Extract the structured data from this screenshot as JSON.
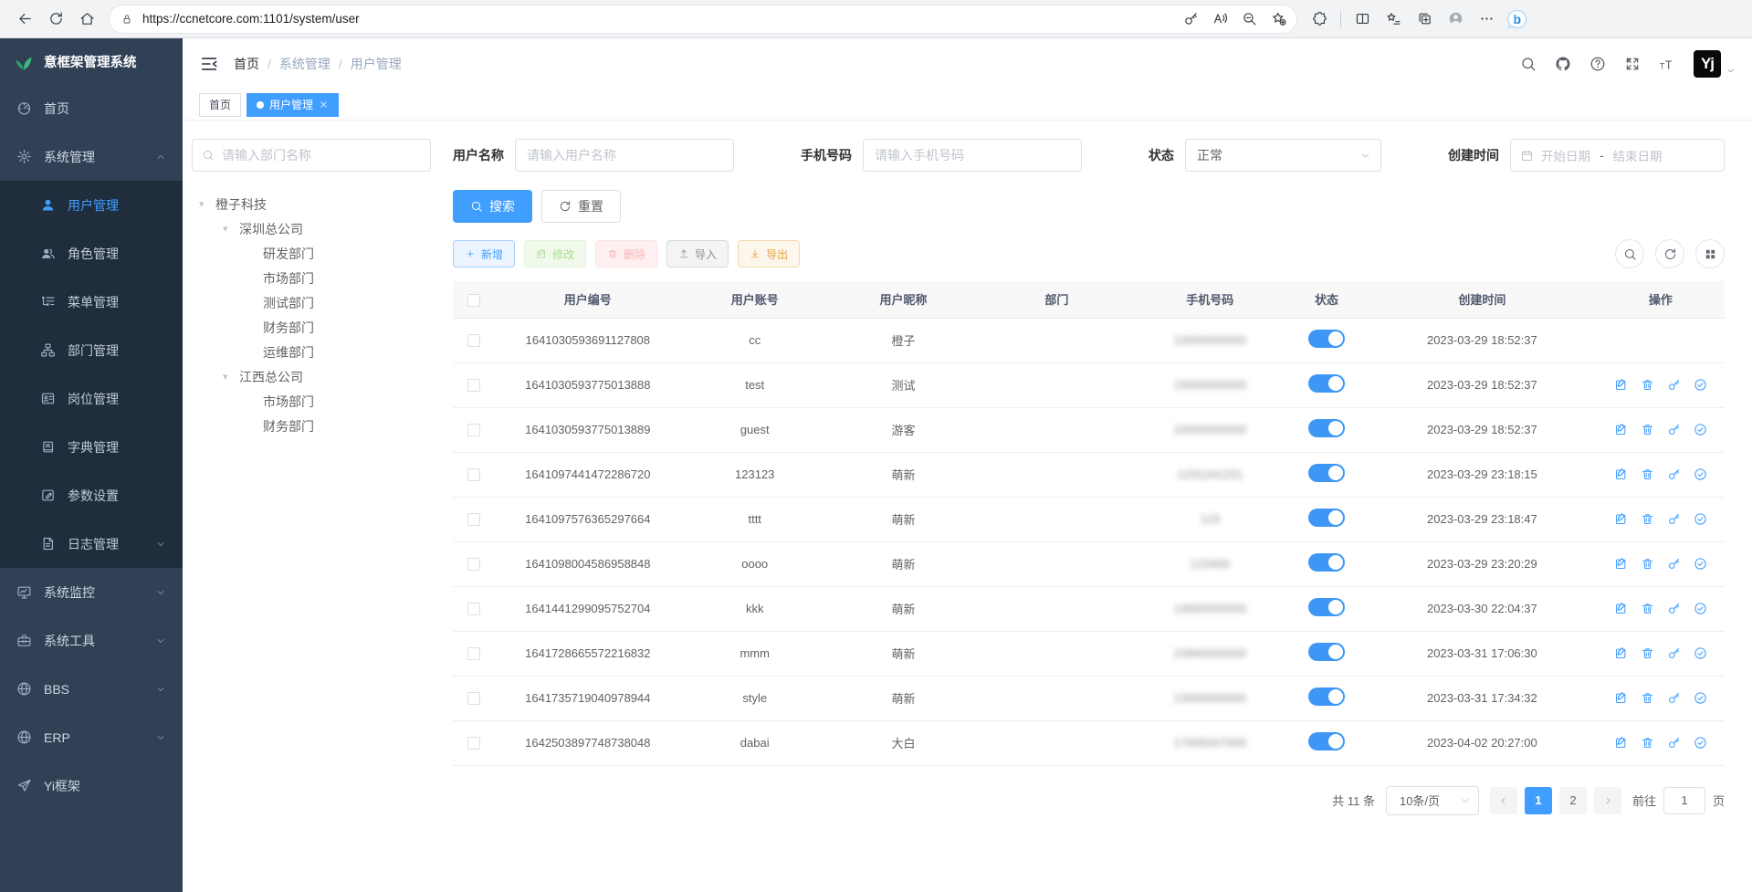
{
  "browser": {
    "url": "https://ccnetcore.com:1101/system/user",
    "left_icons": [
      "back",
      "refresh",
      "home"
    ],
    "url_icons": [
      "key",
      "read-aloud",
      "zoom-out",
      "star-plus"
    ],
    "right_icons": [
      "extensions",
      "split",
      "fav-bar",
      "collections",
      "profile",
      "more"
    ]
  },
  "sidebar": {
    "title": "意框架管理系统",
    "items": [
      {
        "label": "首页",
        "icon": "dashboard"
      },
      {
        "label": "系统管理",
        "icon": "gear",
        "caret": "up"
      },
      {
        "label": "用户管理",
        "icon": "user",
        "sub": true,
        "active": true
      },
      {
        "label": "角色管理",
        "icon": "users",
        "sub": true
      },
      {
        "label": "菜单管理",
        "icon": "menu-tree",
        "sub": true
      },
      {
        "label": "部门管理",
        "icon": "org",
        "sub": true
      },
      {
        "label": "岗位管理",
        "icon": "badge",
        "sub": true
      },
      {
        "label": "字典管理",
        "icon": "dict",
        "sub": true
      },
      {
        "label": "参数设置",
        "icon": "edit-square",
        "sub": true
      },
      {
        "label": "日志管理",
        "icon": "log",
        "sub": true,
        "caret": "down"
      },
      {
        "label": "系统监控",
        "icon": "monitor",
        "caret": "down"
      },
      {
        "label": "系统工具",
        "icon": "toolbox",
        "caret": "down"
      },
      {
        "label": "BBS",
        "icon": "globe",
        "caret": "down"
      },
      {
        "label": "ERP",
        "icon": "globe",
        "caret": "down"
      },
      {
        "label": "Yi框架",
        "icon": "plane"
      }
    ]
  },
  "navbar": {
    "breadcrumb": [
      "首页",
      "系统管理",
      "用户管理"
    ],
    "sep": "/",
    "tools": [
      "search",
      "github",
      "question",
      "fullscreen",
      "font-size"
    ],
    "avatar": "Yj"
  },
  "tabs": [
    {
      "label": "首页",
      "active": false
    },
    {
      "label": "用户管理",
      "active": true
    }
  ],
  "tree": {
    "placeholder": "请输入部门名称",
    "nodes": [
      {
        "label": "橙子科技",
        "level": 0,
        "exp": true
      },
      {
        "label": "深圳总公司",
        "level": 1,
        "exp": true
      },
      {
        "label": "研发部门",
        "level": 2
      },
      {
        "label": "市场部门",
        "level": 2
      },
      {
        "label": "测试部门",
        "level": 2
      },
      {
        "label": "财务部门",
        "level": 2
      },
      {
        "label": "运维部门",
        "level": 2
      },
      {
        "label": "江西总公司",
        "level": 1,
        "exp": true
      },
      {
        "label": "市场部门",
        "level": 2
      },
      {
        "label": "财务部门",
        "level": 2
      }
    ]
  },
  "filters": {
    "username_label": "用户名称",
    "username_placeholder": "请输入用户名称",
    "phone_label": "手机号码",
    "phone_placeholder": "请输入手机号码",
    "status_label": "状态",
    "status_value": "正常",
    "created_label": "创建时间",
    "date_start_placeholder": "开始日期",
    "date_separator": "-",
    "date_end_placeholder": "结束日期",
    "search_label": "搜索",
    "reset_label": "重置"
  },
  "toolbar": {
    "add": "新增",
    "edit": "修改",
    "delete": "删除",
    "import": "导入",
    "export": "导出"
  },
  "table": {
    "columns": [
      "",
      "用户编号",
      "用户账号",
      "用户昵称",
      "部门",
      "手机号码",
      "状态",
      "创建时间",
      "操作"
    ],
    "op_icons": [
      {
        "icon": "edit-op",
        "name": "edit-icon"
      },
      {
        "icon": "trash",
        "name": "delete-icon"
      },
      {
        "icon": "key",
        "name": "reset-password-icon"
      },
      {
        "icon": "check-circle",
        "name": "assign-role-icon"
      }
    ],
    "rows": [
      {
        "id": "1641030593691127808",
        "account": "cc",
        "nickname": "橙子",
        "dept": "",
        "phone": "13000000000",
        "status": true,
        "created": "2023-03-29 18:52:37",
        "ops": false
      },
      {
        "id": "1641030593775013888",
        "account": "test",
        "nickname": "测试",
        "dept": "",
        "phone": "15000000000",
        "status": true,
        "created": "2023-03-29 18:52:37",
        "ops": true
      },
      {
        "id": "1641030593775013889",
        "account": "guest",
        "nickname": "游客",
        "dept": "",
        "phone": "15000000000",
        "status": true,
        "created": "2023-03-29 18:52:37",
        "ops": true
      },
      {
        "id": "1641097441472286720",
        "account": "123123",
        "nickname": "萌新",
        "dept": "",
        "phone": "1231241231",
        "status": true,
        "created": "2023-03-29 23:18:15",
        "ops": true
      },
      {
        "id": "1641097576365297664",
        "account": "tttt",
        "nickname": "萌新",
        "dept": "",
        "phone": "123",
        "status": true,
        "created": "2023-03-29 23:18:47",
        "ops": true
      },
      {
        "id": "1641098004586958848",
        "account": "oooo",
        "nickname": "萌新",
        "dept": "",
        "phone": "123400",
        "status": true,
        "created": "2023-03-29 23:20:29",
        "ops": true
      },
      {
        "id": "1641441299095752704",
        "account": "kkk",
        "nickname": "萌新",
        "dept": "",
        "phone": "13000000000",
        "status": true,
        "created": "2023-03-30 22:04:37",
        "ops": true
      },
      {
        "id": "1641728665572216832",
        "account": "mmm",
        "nickname": "萌新",
        "dept": "",
        "phone": "15840000000",
        "status": true,
        "created": "2023-03-31 17:06:30",
        "ops": true
      },
      {
        "id": "1641735719040978944",
        "account": "style",
        "nickname": "萌新",
        "dept": "",
        "phone": "13000000000",
        "status": true,
        "created": "2023-03-31 17:34:32",
        "ops": true
      },
      {
        "id": "1642503897748738048",
        "account": "dabai",
        "nickname": "大白",
        "dept": "",
        "phone": "17005007000",
        "status": true,
        "created": "2023-04-02 20:27:00",
        "ops": true
      }
    ]
  },
  "pagination": {
    "total": "共 11 条",
    "page_size": "10条/页",
    "pages": [
      "1",
      "2"
    ],
    "active": "1",
    "goto": "前往",
    "goto_value": "1",
    "unit": "页"
  },
  "colors": {
    "primary": "#409eff",
    "sidebar_bg": "#304156",
    "submenu_bg": "#1f2d3d",
    "success": "#67c23a",
    "danger": "#f56c6c",
    "warning": "#e6a23c"
  }
}
